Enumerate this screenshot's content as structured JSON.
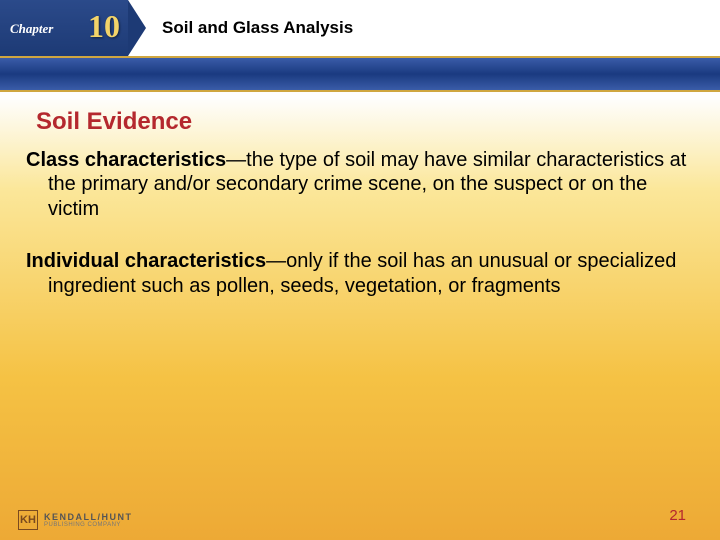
{
  "header": {
    "chapter_label": "Chapter",
    "chapter_number": "10",
    "chapter_title": "Soil and Glass Analysis",
    "chapter_badge_bg_top": "#2b4a8a",
    "chapter_badge_bg_bottom": "#1d3a75",
    "chapter_number_color": "#f3d469",
    "strip_gradient_top": "#3a5ca8",
    "strip_gradient_mid": "#1a3a80",
    "strip_border": "#cfa640"
  },
  "content": {
    "section_title": "Soil Evidence",
    "section_title_color": "#b4282e",
    "section_title_fontsize": 24,
    "body_fontsize": 20,
    "para1_bold": "Class characteristics",
    "para1_rest": "—the type of soil may have similar characteristics at the primary and/or secondary crime scene, on the suspect or on the victim",
    "para2_bold": "Individual characteristics",
    "para2_rest": "—only if the soil has an unusual or specialized ingredient such as pollen, seeds, vegetation, or fragments"
  },
  "background": {
    "gradient_stops": [
      "#fefefe",
      "#fefefe",
      "#fbe79a",
      "#f5c244",
      "#eda935"
    ]
  },
  "footer": {
    "publisher_name": "KENDALL/HUNT",
    "publisher_sub": "PUBLISHING COMPANY",
    "publisher_logo_glyph": "KH",
    "publisher_color": "#7a4a1f",
    "page_number": "21",
    "page_number_color": "#b4282e"
  }
}
